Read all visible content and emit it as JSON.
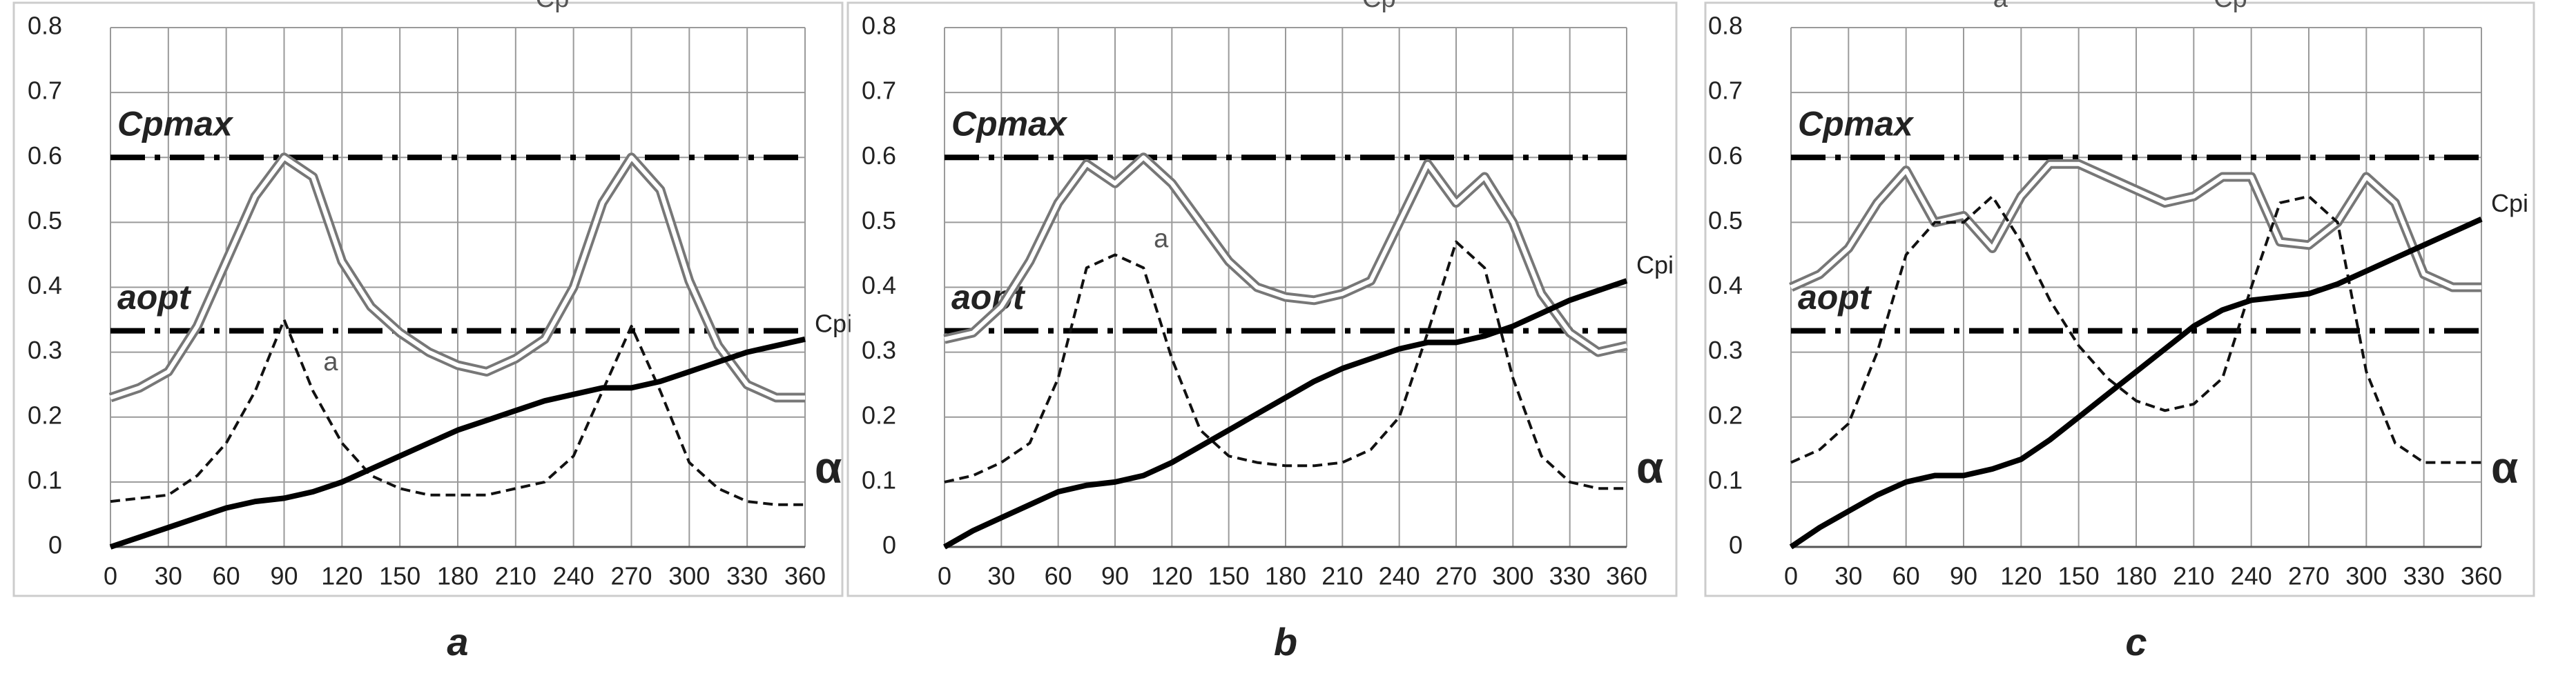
{
  "chart_data": [
    {
      "type": "line",
      "panel_label": "a",
      "x_label": "α",
      "x": [
        0,
        15,
        30,
        45,
        60,
        75,
        90,
        105,
        120,
        135,
        150,
        165,
        180,
        195,
        210,
        225,
        240,
        255,
        270,
        285,
        300,
        315,
        330,
        345,
        360
      ],
      "xlim": [
        0,
        360
      ],
      "xticks": [
        0,
        30,
        60,
        90,
        120,
        150,
        180,
        210,
        240,
        270,
        300,
        330,
        360
      ],
      "ylim": [
        0,
        0.8
      ],
      "yticks": [
        0,
        0.1,
        0.2,
        0.3,
        0.4,
        0.5,
        0.6,
        0.7,
        0.8
      ],
      "grid": true,
      "ref_lines": [
        {
          "name": "Cpmax",
          "value": 0.6
        },
        {
          "name": "aopt",
          "value": 0.333
        }
      ],
      "series": [
        {
          "name": "Cp",
          "color": "#777777",
          "style": "double",
          "values": [
            0.23,
            0.245,
            0.27,
            0.34,
            0.44,
            0.54,
            0.6,
            0.57,
            0.44,
            0.37,
            0.33,
            0.3,
            0.28,
            0.27,
            0.29,
            0.32,
            0.4,
            0.53,
            0.6,
            0.55,
            0.41,
            0.31,
            0.25,
            0.23,
            0.23
          ]
        },
        {
          "name": "a",
          "color": "#111111",
          "style": "dashed",
          "values": [
            0.07,
            0.075,
            0.08,
            0.11,
            0.16,
            0.24,
            0.35,
            0.24,
            0.16,
            0.11,
            0.09,
            0.08,
            0.08,
            0.08,
            0.09,
            0.1,
            0.14,
            0.24,
            0.34,
            0.24,
            0.13,
            0.09,
            0.07,
            0.065,
            0.065
          ]
        },
        {
          "name": "Cpi",
          "color": "#000000",
          "style": "solid",
          "values": [
            0,
            0.015,
            0.03,
            0.045,
            0.06,
            0.07,
            0.075,
            0.085,
            0.1,
            0.12,
            0.14,
            0.16,
            0.18,
            0.195,
            0.21,
            0.225,
            0.235,
            0.245,
            0.245,
            0.255,
            0.27,
            0.285,
            0.3,
            0.31,
            0.32
          ]
        }
      ]
    },
    {
      "type": "line",
      "panel_label": "b",
      "x_label": "α",
      "x": [
        0,
        15,
        30,
        45,
        60,
        75,
        90,
        105,
        120,
        135,
        150,
        165,
        180,
        195,
        210,
        225,
        240,
        255,
        270,
        285,
        300,
        315,
        330,
        345,
        360
      ],
      "xlim": [
        0,
        360
      ],
      "xticks": [
        0,
        30,
        60,
        90,
        120,
        150,
        180,
        210,
        240,
        270,
        300,
        330,
        360
      ],
      "ylim": [
        0,
        0.8
      ],
      "yticks": [
        0,
        0.1,
        0.2,
        0.3,
        0.4,
        0.5,
        0.6,
        0.7,
        0.8
      ],
      "grid": true,
      "ref_lines": [
        {
          "name": "Cpmax",
          "value": 0.6
        },
        {
          "name": "aopt",
          "value": 0.333
        }
      ],
      "series": [
        {
          "name": "Cp",
          "color": "#777777",
          "style": "double",
          "values": [
            0.32,
            0.33,
            0.37,
            0.44,
            0.53,
            0.59,
            0.56,
            0.6,
            0.56,
            0.5,
            0.44,
            0.4,
            0.385,
            0.38,
            0.39,
            0.41,
            0.5,
            0.59,
            0.53,
            0.57,
            0.5,
            0.39,
            0.33,
            0.3,
            0.31
          ]
        },
        {
          "name": "a",
          "color": "#111111",
          "style": "dashed",
          "values": [
            0.1,
            0.11,
            0.13,
            0.16,
            0.26,
            0.43,
            0.45,
            0.43,
            0.29,
            0.18,
            0.14,
            0.13,
            0.125,
            0.125,
            0.13,
            0.15,
            0.2,
            0.33,
            0.47,
            0.43,
            0.26,
            0.14,
            0.1,
            0.09,
            0.09
          ]
        },
        {
          "name": "Cpi",
          "color": "#000000",
          "style": "solid",
          "values": [
            0,
            0.025,
            0.045,
            0.065,
            0.085,
            0.095,
            0.1,
            0.11,
            0.13,
            0.155,
            0.18,
            0.205,
            0.23,
            0.255,
            0.275,
            0.29,
            0.305,
            0.315,
            0.315,
            0.325,
            0.34,
            0.36,
            0.38,
            0.395,
            0.41
          ]
        }
      ]
    },
    {
      "type": "line",
      "panel_label": "c",
      "x_label": "α",
      "x": [
        0,
        15,
        30,
        45,
        60,
        75,
        90,
        105,
        120,
        135,
        150,
        165,
        180,
        195,
        210,
        225,
        240,
        255,
        270,
        285,
        300,
        315,
        330,
        345,
        360
      ],
      "xlim": [
        0,
        360
      ],
      "xticks": [
        0,
        30,
        60,
        90,
        120,
        150,
        180,
        210,
        240,
        270,
        300,
        330,
        360
      ],
      "ylim": [
        0,
        0.8
      ],
      "yticks": [
        0,
        0.1,
        0.2,
        0.3,
        0.4,
        0.5,
        0.6,
        0.7,
        0.8
      ],
      "grid": true,
      "ref_lines": [
        {
          "name": "Cpmax",
          "value": 0.6
        },
        {
          "name": "aopt",
          "value": 0.333
        }
      ],
      "series": [
        {
          "name": "Cp",
          "color": "#777777",
          "style": "double",
          "values": [
            0.4,
            0.42,
            0.46,
            0.53,
            0.58,
            0.5,
            0.51,
            0.46,
            0.54,
            0.59,
            0.59,
            0.57,
            0.55,
            0.53,
            0.54,
            0.57,
            0.57,
            0.47,
            0.465,
            0.5,
            0.57,
            0.53,
            0.42,
            0.4,
            0.4
          ]
        },
        {
          "name": "a",
          "color": "#111111",
          "style": "dashed",
          "values": [
            0.13,
            0.15,
            0.19,
            0.3,
            0.45,
            0.5,
            0.5,
            0.54,
            0.47,
            0.38,
            0.31,
            0.26,
            0.225,
            0.21,
            0.22,
            0.26,
            0.4,
            0.53,
            0.54,
            0.5,
            0.27,
            0.16,
            0.13,
            0.13,
            0.13
          ]
        },
        {
          "name": "Cpi",
          "color": "#000000",
          "style": "solid",
          "values": [
            0,
            0.03,
            0.055,
            0.08,
            0.1,
            0.11,
            0.11,
            0.12,
            0.135,
            0.165,
            0.2,
            0.235,
            0.27,
            0.305,
            0.34,
            0.365,
            0.38,
            0.385,
            0.39,
            0.405,
            0.425,
            0.445,
            0.465,
            0.485,
            0.505
          ]
        }
      ]
    }
  ]
}
